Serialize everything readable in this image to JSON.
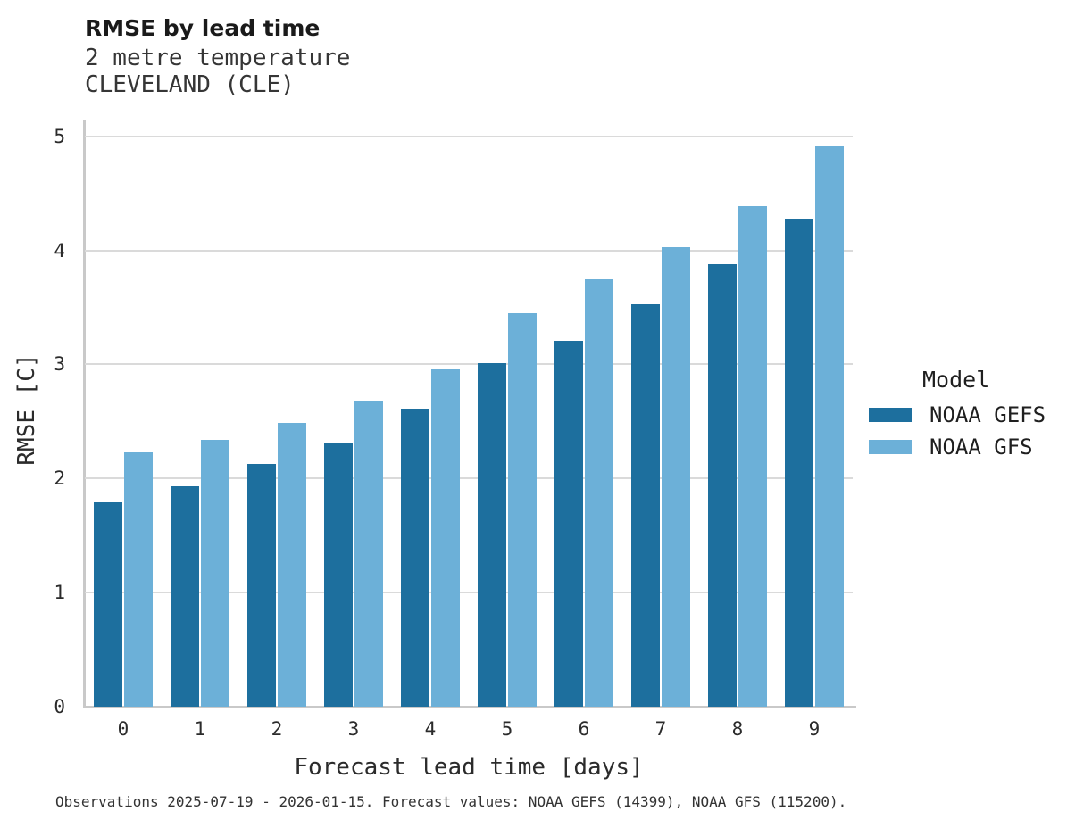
{
  "chart_data": {
    "type": "bar",
    "title": "RMSE by lead time",
    "subtitle_line1": "2 metre temperature",
    "subtitle_line2": "CLEVELAND (CLE)",
    "categories": [
      "0",
      "1",
      "2",
      "3",
      "4",
      "5",
      "6",
      "7",
      "8",
      "9"
    ],
    "series": [
      {
        "name": "NOAA GEFS",
        "color": "#1d6f9e",
        "values": [
          1.79,
          1.93,
          2.13,
          2.31,
          2.61,
          3.01,
          3.21,
          3.53,
          3.88,
          4.27
        ]
      },
      {
        "name": "NOAA GFS",
        "color": "#6cb0d8",
        "values": [
          2.23,
          2.34,
          2.49,
          2.68,
          2.96,
          3.45,
          3.75,
          4.03,
          4.39,
          4.91
        ]
      }
    ],
    "xlabel": "Forecast lead time [days]",
    "ylabel": "RMSE [C]",
    "ylim": [
      0,
      5.1
    ],
    "yticks": [
      0,
      1,
      2,
      3,
      4,
      5
    ],
    "grid": "horizontal-only",
    "legend_title": "Model",
    "legend_position": "right"
  },
  "footer": {
    "caption": "Observations 2025-07-19 - 2026-01-15. Forecast values: NOAA GEFS (14399), NOAA GFS (115200)."
  },
  "style": {
    "grid_color": "#dadada",
    "axis_color": "#c9c9c9",
    "gefs_color": "#1d6f9e",
    "gfs_color": "#6cb0d8"
  }
}
